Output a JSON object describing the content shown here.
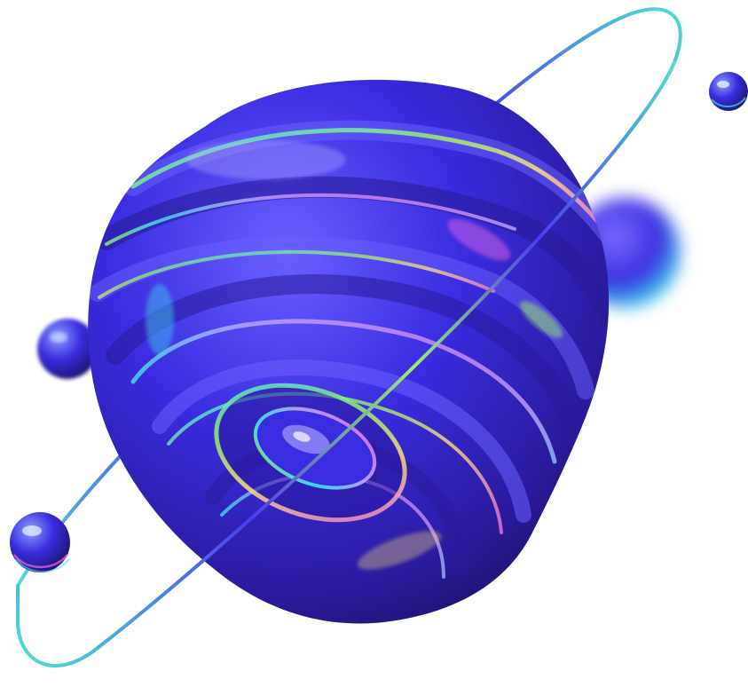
{
  "scene": {
    "subject": "iridescent-swirled-planet",
    "background_color": "#ffffff",
    "colors": {
      "planet_dark": "#2a1a9a",
      "planet_mid": "#3a2ce0",
      "planet_light": "#6a60ff",
      "ridge_highlight": "#b8b0ff",
      "iridescent_cyan": "#3de6f0",
      "iridescent_green": "#9cf06a",
      "iridescent_yellow": "#ffe27a",
      "iridescent_pink": "#f06ae6",
      "ring_start": "#4a3cf0",
      "ring_end": "#4ee0d0"
    },
    "objects": [
      "orbit-ring",
      "swirled-planet",
      "blurred-moon",
      "small-moon-top-right",
      "small-moon-left",
      "small-moon-bottom-left"
    ]
  }
}
